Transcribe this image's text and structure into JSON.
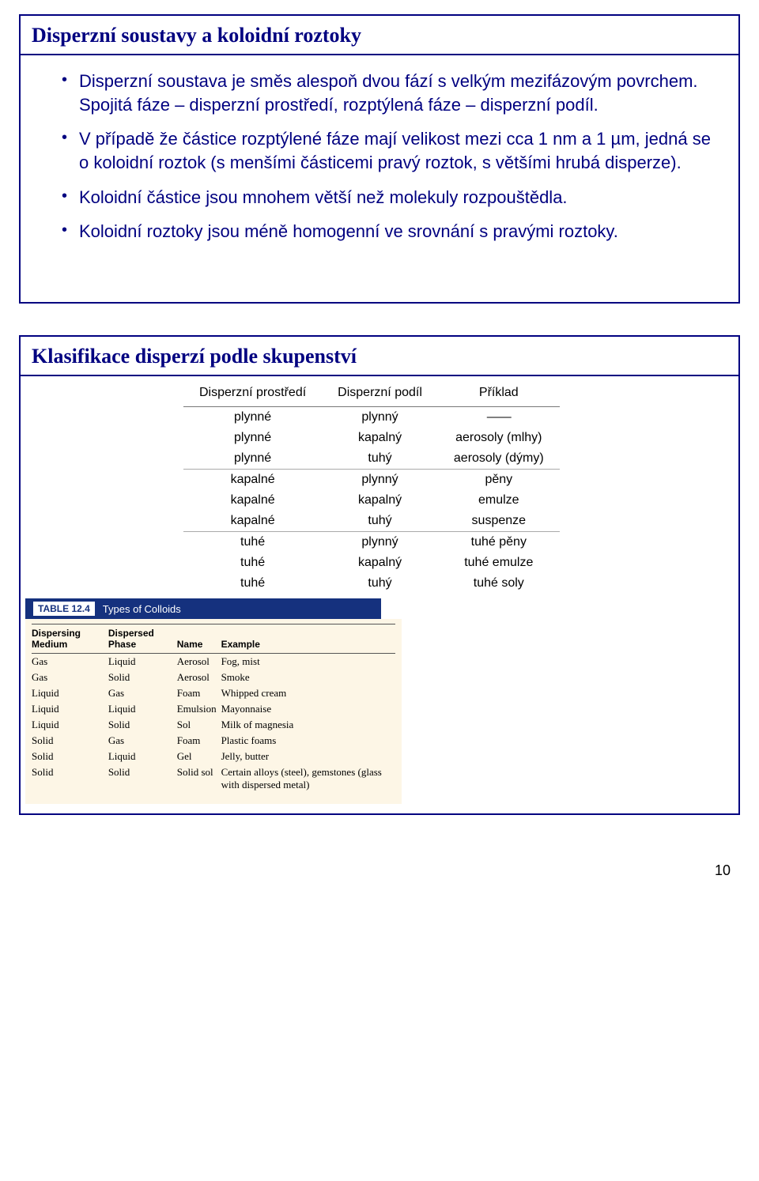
{
  "slide1": {
    "title": "Disperzní soustavy a koloidní roztoky",
    "bullets": [
      "Disperzní soustava je směs alespoň dvou fází s velkým mezifázovým povrchem. Spojitá fáze – disperzní prostředí, rozptýlená fáze – disperzní podíl.",
      "V případě že částice rozptýlené fáze mají velikost mezi cca 1 nm a 1 µm, jedná se o koloidní roztok (s menšími částicemi pravý roztok, s většími hrubá disperze).",
      "Koloidní částice jsou mnohem větší než molekuly rozpouštědla.",
      "Koloidní roztoky jsou méně homogenní ve srovnání s pravými roztoky."
    ]
  },
  "slide2": {
    "title": "Klasifikace disperzí podle skupenství",
    "table1": {
      "headers": [
        "Disperzní prostředí",
        "Disperzní podíl",
        "Příklad"
      ],
      "groups": [
        [
          [
            "plynné",
            "plynný",
            "——"
          ],
          [
            "plynné",
            "kapalný",
            "aerosoly (mlhy)"
          ],
          [
            "plynné",
            "tuhý",
            "aerosoly (dýmy)"
          ]
        ],
        [
          [
            "kapalné",
            "plynný",
            "pěny"
          ],
          [
            "kapalné",
            "kapalný",
            "emulze"
          ],
          [
            "kapalné",
            "tuhý",
            "suspenze"
          ]
        ],
        [
          [
            "tuhé",
            "plynný",
            "tuhé pěny"
          ],
          [
            "tuhé",
            "kapalný",
            "tuhé emulze"
          ],
          [
            "tuhé",
            "tuhý",
            "tuhé soly"
          ]
        ]
      ]
    },
    "table2_label_num": "TABLE 12.4",
    "table2_label_text": "Types of Colloids",
    "table2": {
      "headers": [
        "Dispersing Medium",
        "Dispersed Phase",
        "Name",
        "Example"
      ],
      "rows": [
        [
          "Gas",
          "Liquid",
          "Aerosol",
          "Fog, mist"
        ],
        [
          "Gas",
          "Solid",
          "Aerosol",
          "Smoke"
        ],
        [
          "Liquid",
          "Gas",
          "Foam",
          "Whipped cream"
        ],
        [
          "Liquid",
          "Liquid",
          "Emulsion",
          "Mayonnaise"
        ],
        [
          "Liquid",
          "Solid",
          "Sol",
          "Milk of magnesia"
        ],
        [
          "Solid",
          "Gas",
          "Foam",
          "Plastic foams"
        ],
        [
          "Solid",
          "Liquid",
          "Gel",
          "Jelly, butter"
        ],
        [
          "Solid",
          "Solid",
          "Solid sol",
          "Certain alloys (steel), gemstones (glass with dispersed metal)"
        ]
      ]
    }
  },
  "page_number": "10"
}
